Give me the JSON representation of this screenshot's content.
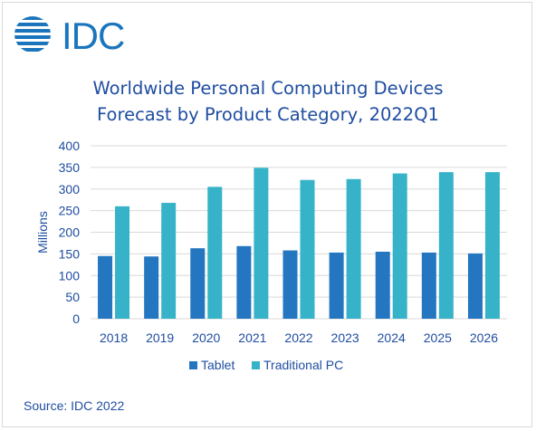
{
  "logo": {
    "text": "IDC"
  },
  "chart_data": {
    "type": "bar",
    "title_lines": [
      "Worldwide Personal Computing Devices",
      "Forecast by Product Category, 2022Q1"
    ],
    "ylabel": "Millions",
    "ylim": [
      0,
      400
    ],
    "yticks": [
      0,
      50,
      100,
      150,
      200,
      250,
      300,
      350,
      400
    ],
    "categories": [
      "2018",
      "2019",
      "2020",
      "2021",
      "2022",
      "2023",
      "2024",
      "2025",
      "2026"
    ],
    "series": [
      {
        "name": "Tablet",
        "color": "#2476c0",
        "values": [
          145,
          144,
          163,
          168,
          158,
          153,
          155,
          153,
          151
        ]
      },
      {
        "name": "Traditional PC",
        "color": "#36b3c8",
        "values": [
          260,
          268,
          305,
          349,
          321,
          323,
          336,
          339,
          339
        ]
      }
    ],
    "grid": true,
    "legend_position": "bottom"
  },
  "source": "Source: IDC 2022"
}
